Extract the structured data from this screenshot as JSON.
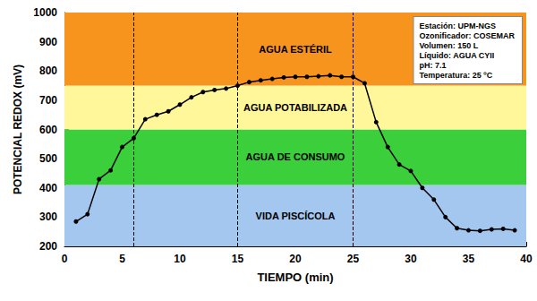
{
  "chart_data": {
    "type": "line",
    "x_label": "TIEMPO (min)",
    "y_label": "POTENCIAL REDOX (mV)",
    "x": [
      1,
      2,
      3,
      4,
      5,
      6,
      7,
      8,
      9,
      10,
      11,
      12,
      13,
      14,
      15,
      16,
      17,
      18,
      19,
      20,
      21,
      22,
      23,
      24,
      25,
      26,
      27,
      28,
      29,
      30,
      31,
      32,
      33,
      34,
      35,
      36,
      37,
      38,
      39
    ],
    "values": [
      285,
      310,
      430,
      460,
      540,
      570,
      635,
      650,
      662,
      685,
      710,
      728,
      735,
      740,
      750,
      762,
      768,
      773,
      778,
      780,
      780,
      782,
      785,
      780,
      780,
      758,
      625,
      540,
      480,
      458,
      400,
      360,
      300,
      262,
      255,
      253,
      258,
      260,
      255
    ],
    "color": "#000000",
    "marker": "circle",
    "line_style": "solid",
    "xlim": [
      0,
      40
    ],
    "xticks": [
      0,
      5,
      10,
      15,
      20,
      25,
      30,
      35,
      40
    ],
    "ylim": [
      200,
      1000
    ],
    "yticks": [
      200,
      300,
      400,
      500,
      600,
      700,
      800,
      900,
      1000
    ],
    "grid": false,
    "bands": [
      {
        "from": 200,
        "to": 410,
        "label": "VIDA PISCÍCOLA",
        "color": "#a3c7ee"
      },
      {
        "from": 410,
        "to": 600,
        "label": "AGUA DE CONSUMO",
        "color": "#3ccf3c"
      },
      {
        "from": 600,
        "to": 750,
        "label": "AGUA POTABILIZADA",
        "color": "#fff799"
      },
      {
        "from": 750,
        "to": 1000,
        "label": "AGUA ESTÉRIL",
        "color": "#f7941d"
      }
    ],
    "vertical_lines": [
      6,
      15,
      25
    ],
    "info_box": [
      "Estación: UPM-NGS",
      "Ozonificador: COSEMAR",
      "Volumen: 150 L",
      "Líquido: AGUA CYII",
      "pH: 7.1",
      "Temperatura: 25 ºC"
    ]
  }
}
